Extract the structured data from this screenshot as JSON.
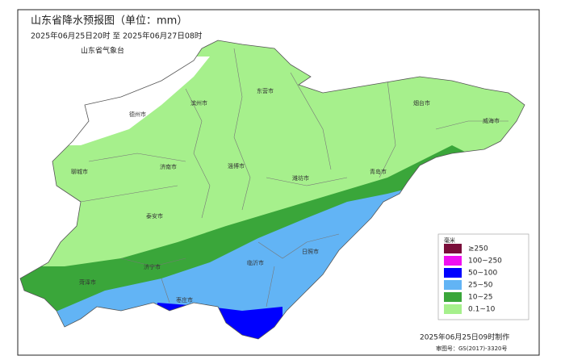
{
  "header": {
    "title": "山东省降水预报图（单位：mm）",
    "period": "2025年06月25日20时  至  2025年06月27日08时",
    "issuer": "山东省气象台"
  },
  "legend": {
    "title": "毫米",
    "items": [
      {
        "label": "≥250",
        "color": "#7a0e3a"
      },
      {
        "label": "100~250",
        "color": "#f010f0"
      },
      {
        "label": "50~100",
        "color": "#0000ff"
      },
      {
        "label": "25~50",
        "color": "#62b4f5"
      },
      {
        "label": "10~25",
        "color": "#3aa63a"
      },
      {
        "label": "0.1~10",
        "color": "#a6f08c"
      }
    ]
  },
  "cities": [
    "德州市",
    "滨州市",
    "东营市",
    "烟台市",
    "威海市",
    "聊城市",
    "济南市",
    "淄博市",
    "潍坊市",
    "青岛市",
    "泰安市",
    "济宁市",
    "菏泽市",
    "临沂市",
    "日照市",
    "枣庄市"
  ],
  "footer": {
    "made": "2025年06月25日09时制作",
    "approval": "审图号：GS(2017)-3320号"
  }
}
